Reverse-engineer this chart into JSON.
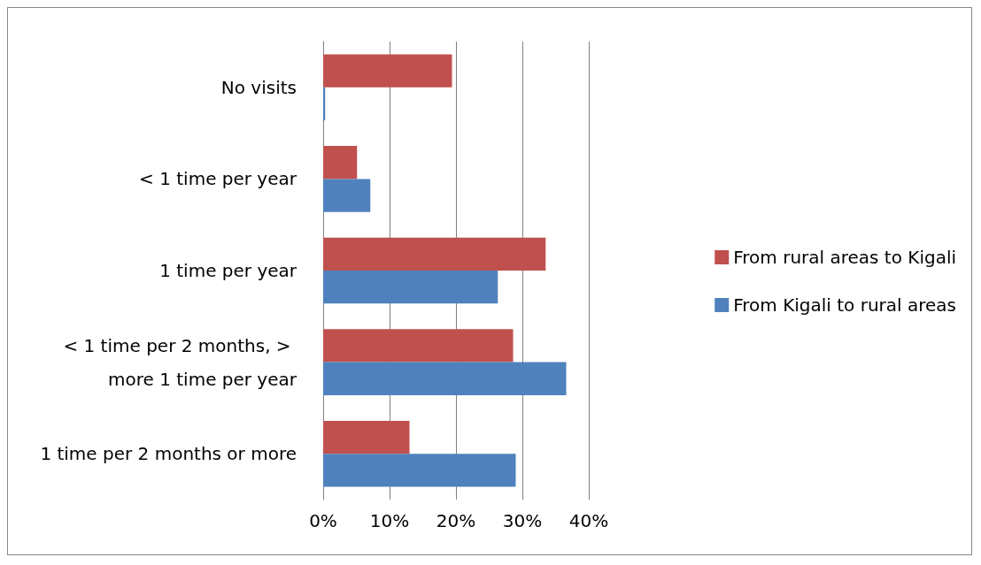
{
  "chart_data": {
    "type": "bar",
    "orientation": "horizontal",
    "categories": [
      "No visits",
      "< 1 time per year",
      "1 time per year",
      "< 1 time per 2 months, > more 1 time per year",
      "1 time per 2 months or more"
    ],
    "series": [
      {
        "name": "From rural areas to Kigali",
        "color": "#c0504d",
        "values": [
          19.4,
          5.1,
          33.5,
          28.6,
          13.0
        ]
      },
      {
        "name": "From Kigali to rural areas",
        "color": "#4f81bd",
        "values": [
          0.3,
          7.1,
          26.3,
          36.6,
          29.0
        ]
      }
    ],
    "xlim": [
      0,
      40
    ],
    "xticks": [
      {
        "value": 0,
        "label": "0%"
      },
      {
        "value": 10,
        "label": "10%"
      },
      {
        "value": 20,
        "label": "20%"
      },
      {
        "value": 30,
        "label": "30%"
      },
      {
        "value": 40,
        "label": "40%"
      }
    ],
    "grid": "x",
    "legend": "right"
  }
}
